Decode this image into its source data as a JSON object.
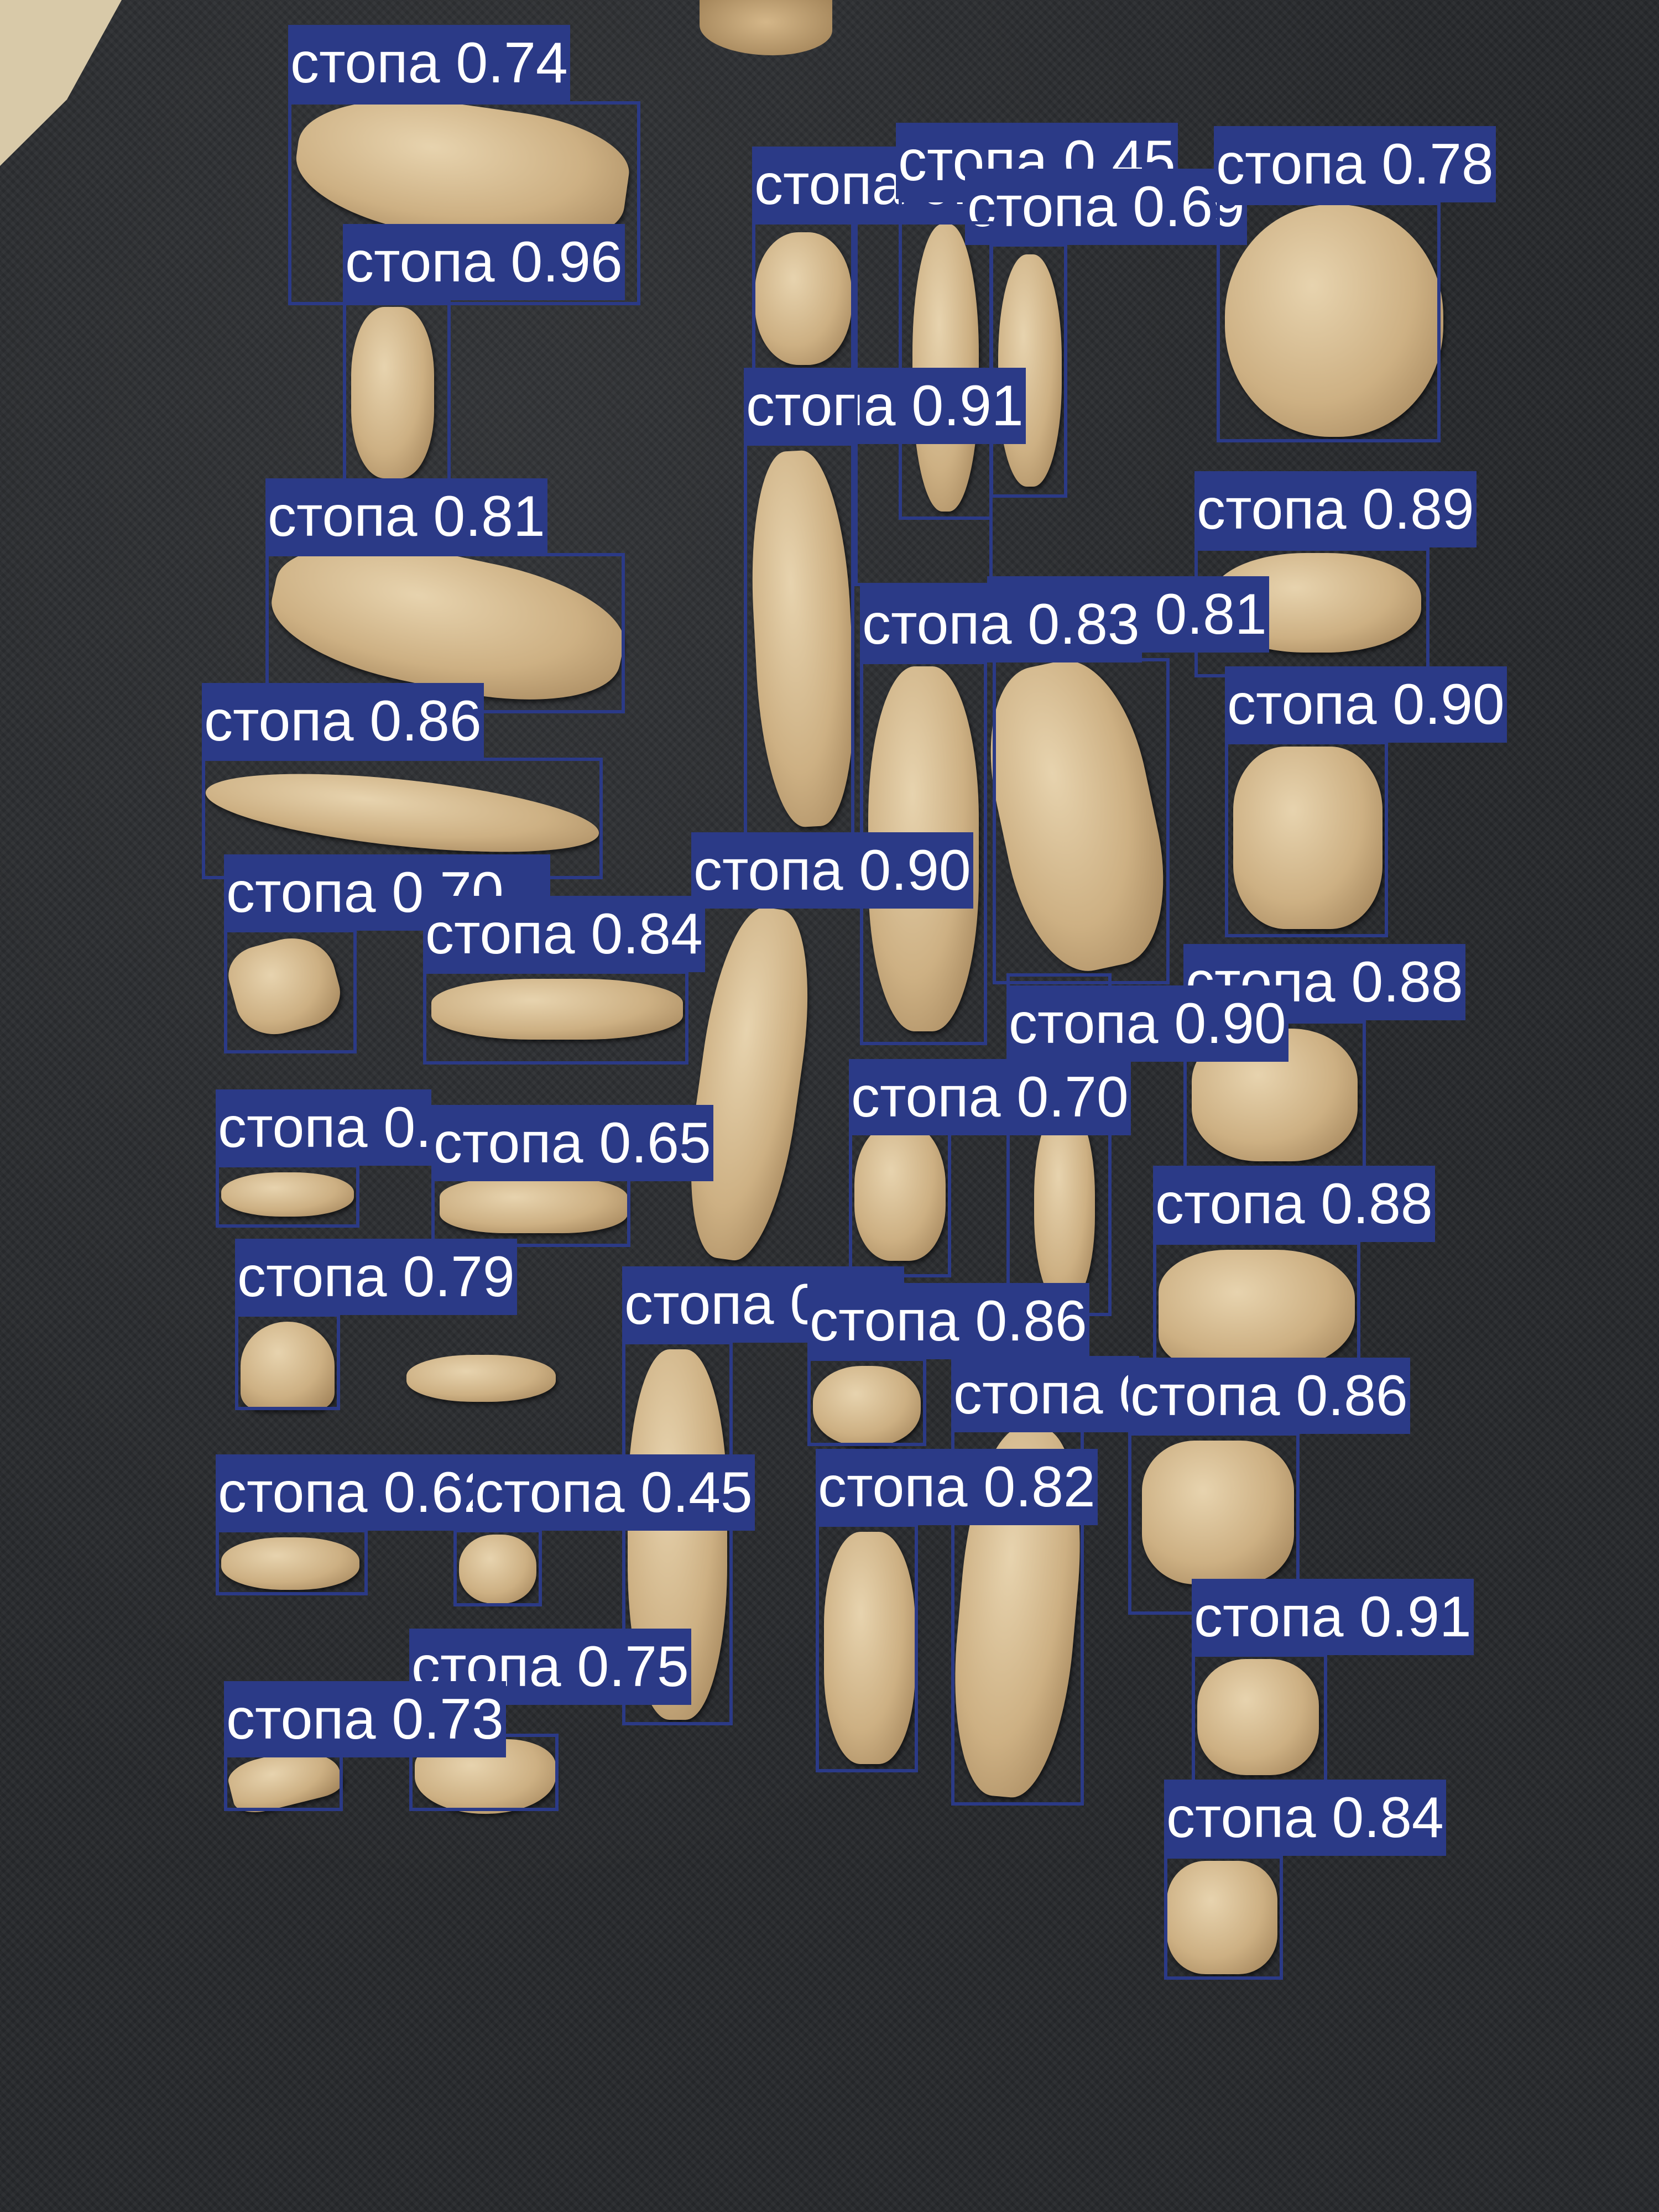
{
  "class_label": "стопа",
  "box_color": "#2b3a87",
  "label_text_color": "#ffffff",
  "detections": [
    {
      "label": "стопа 0.74"
    },
    {
      "label": "стопа 0.96"
    },
    {
      "label": "стопа 0.78"
    },
    {
      "label": "стопа 0.45"
    },
    {
      "label": "стопа 0.69"
    },
    {
      "label": "стопа 0.78"
    },
    {
      "label": "стопа 0.91"
    },
    {
      "label": "стопа 0.81"
    },
    {
      "label": "стопа 0.89"
    },
    {
      "label": "стопа 0.81"
    },
    {
      "label": "стопа 0.86"
    },
    {
      "label": "стопа 0.83"
    },
    {
      "label": "стопа 0.90"
    },
    {
      "label": "стопа 0.70"
    },
    {
      "label": "стопа 0.90"
    },
    {
      "label": "стопа 0.84"
    },
    {
      "label": "стопа 0.88"
    },
    {
      "label": "стопа 0.90"
    },
    {
      "label": "стопа 0.70"
    },
    {
      "label": "стопа 0.65"
    },
    {
      "label": "стопа 0.xx"
    },
    {
      "label": "стопа 0.88"
    },
    {
      "label": "стопа 0.79"
    },
    {
      "label": "стопа 0.92"
    },
    {
      "label": "стопа 0.86"
    },
    {
      "label": "стопа 0.xx"
    },
    {
      "label": "стопа 0.86"
    },
    {
      "label": "стопа 0.62"
    },
    {
      "label": "стопа 0.45"
    },
    {
      "label": "стопа 0.82"
    },
    {
      "label": "стопа 0.91"
    },
    {
      "label": "стопа 0.75"
    },
    {
      "label": "стопа 0.73"
    },
    {
      "label": "стопа 0.84"
    }
  ]
}
